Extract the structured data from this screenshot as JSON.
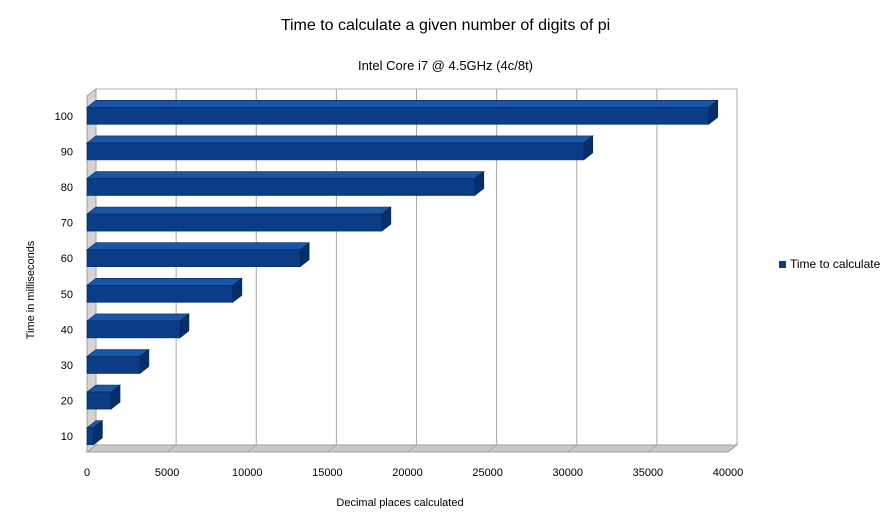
{
  "chart_data": {
    "type": "bar",
    "orientation": "horizontal",
    "title": "Time to calculate a given number of digits of pi",
    "subtitle": "Intel Core i7 @ 4.5GHz (4c/8t)",
    "xlabel": "Decimal places calculated",
    "ylabel": "Time in milliseconds",
    "categories": [
      "10",
      "20",
      "30",
      "40",
      "50",
      "60",
      "70",
      "80",
      "90",
      "100"
    ],
    "series": [
      {
        "name": "Time to calculate",
        "values": [
          400,
          1500,
          3300,
          5800,
          9100,
          13300,
          18400,
          24200,
          31000,
          38800
        ],
        "color": "#0a3d86"
      }
    ],
    "xlim": [
      0,
      40000
    ],
    "xticks": [
      "0",
      "5000",
      "10000",
      "15000",
      "20000",
      "25000",
      "30000",
      "35000",
      "40000"
    ],
    "grid": true,
    "legend": "right",
    "style": "3d"
  }
}
